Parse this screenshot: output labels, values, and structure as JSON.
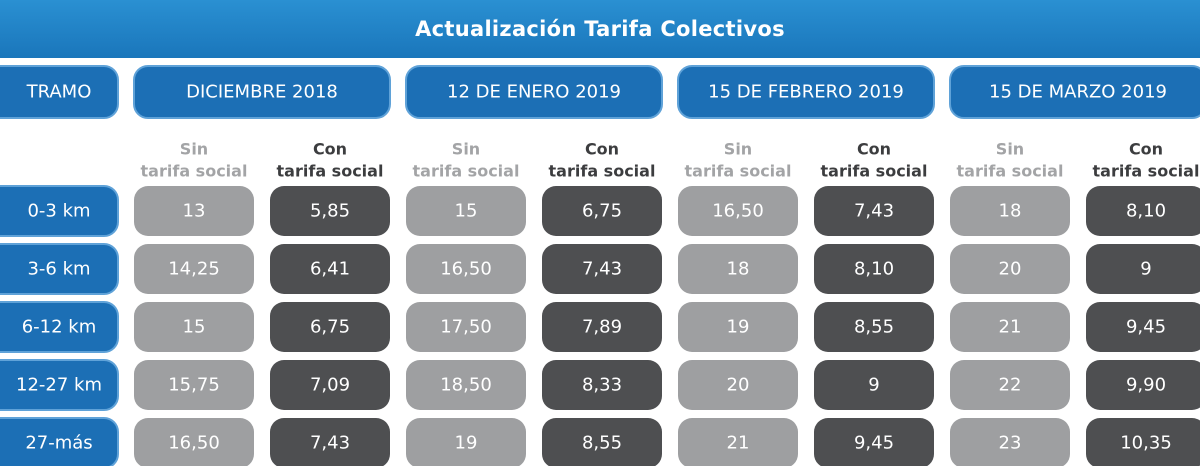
{
  "chart_data": {
    "type": "table",
    "title": "Actualización Tarifa Colectivos",
    "row_header": "TRAMO",
    "rows": [
      "0-3 km",
      "3-6 km",
      "6-12 km",
      "12-27 km",
      "27-más"
    ],
    "periods": [
      "DICIEMBRE 2018",
      "12 DE ENERO 2019",
      "15 DE FEBRERO 2019",
      "15 DE MARZO 2019"
    ],
    "subcolumns": [
      {
        "line1": "Sin",
        "line2": "tarifa social"
      },
      {
        "line1": "Con",
        "line2": "tarifa social"
      }
    ],
    "series": [
      {
        "period": "DICIEMBRE 2018",
        "sin": [
          "13",
          "14,25",
          "15",
          "15,75",
          "16,50"
        ],
        "con": [
          "5,85",
          "6,41",
          "6,75",
          "7,09",
          "7,43"
        ]
      },
      {
        "period": "12 DE ENERO 2019",
        "sin": [
          "15",
          "16,50",
          "17,50",
          "18,50",
          "19"
        ],
        "con": [
          "6,75",
          "7,43",
          "7,89",
          "8,33",
          "8,55"
        ]
      },
      {
        "period": "15 DE FEBRERO 2019",
        "sin": [
          "16,50",
          "18",
          "19",
          "20",
          "21"
        ],
        "con": [
          "7,43",
          "8,10",
          "8,55",
          "9",
          "9,45"
        ]
      },
      {
        "period": "15 DE MARZO 2019",
        "sin": [
          "18",
          "20",
          "21",
          "22",
          "23"
        ],
        "con": [
          "8,10",
          "9",
          "9,45",
          "9,90",
          "10,35"
        ]
      }
    ],
    "colors": {
      "title_bar": "#1a76bb",
      "header_pill": "#1c6fb5",
      "sin_cell": "#9e9fa1",
      "con_cell": "#4e4f51"
    }
  }
}
